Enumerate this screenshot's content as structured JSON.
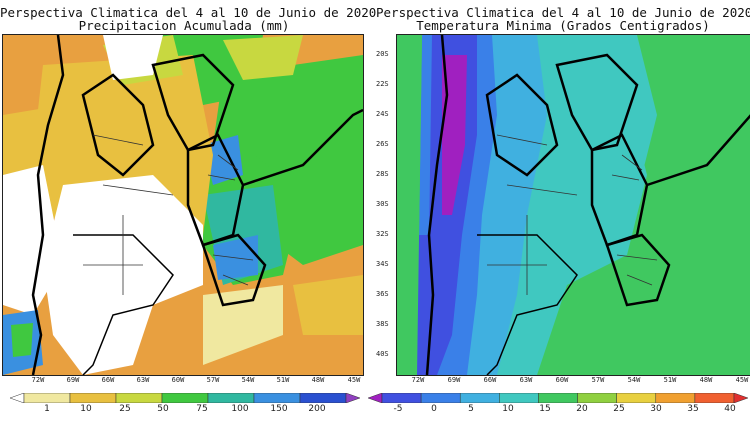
{
  "left_map": {
    "title_line1": "Perspectiva Climatica del 4 al 10 de Junio de 2020",
    "title_line2": "Precipitacion Acumulada (mm)",
    "lon_labels": [
      "72W",
      "69W",
      "66W",
      "63W",
      "60W",
      "57W",
      "54W",
      "51W",
      "48W",
      "45W"
    ],
    "colorbar": {
      "colors": [
        "#ffffff",
        "#f0e8a0",
        "#e8c040",
        "#c8d840",
        "#40c840",
        "#30b8a0",
        "#3a90e0",
        "#2a50d0",
        "#9040c0"
      ],
      "labels": [
        "1",
        "10",
        "25",
        "50",
        "75",
        "100",
        "150",
        "200"
      ]
    }
  },
  "right_map": {
    "title_line1": "Perspectiva Climatica del 4 al 10 de Junio de 2020",
    "title_line2": "Temperatura Minima (Grados Centigrados)",
    "lat_labels": [
      "20S",
      "22S",
      "24S",
      "26S",
      "28S",
      "30S",
      "32S",
      "34S",
      "36S",
      "38S",
      "40S"
    ],
    "lon_labels": [
      "72W",
      "69W",
      "66W",
      "63W",
      "60W",
      "57W",
      "54W",
      "51W",
      "48W",
      "45W"
    ],
    "colorbar": {
      "colors": [
        "#a020c0",
        "#4050e0",
        "#3a80e8",
        "#40b0e0",
        "#40c8c0",
        "#40c860",
        "#90d040",
        "#e8d040",
        "#f0a030",
        "#f06030",
        "#e03030"
      ],
      "labels": [
        "-5",
        "0",
        "5",
        "10",
        "15",
        "20",
        "25",
        "30",
        "35",
        "40"
      ]
    }
  }
}
